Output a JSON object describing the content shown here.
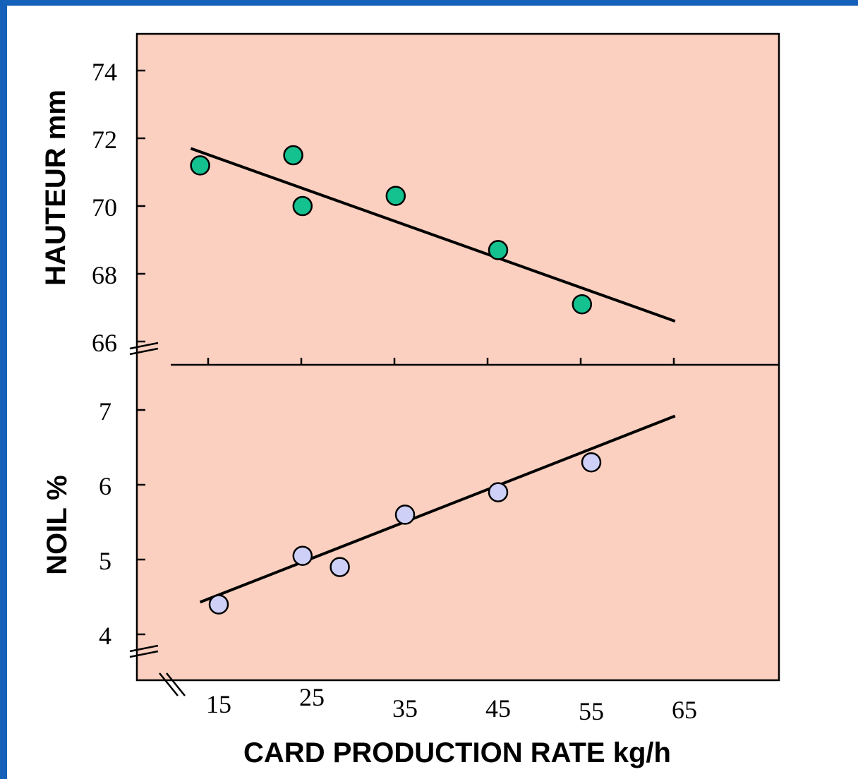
{
  "chart_data": [
    {
      "type": "scatter",
      "title": "",
      "xlabel": "",
      "ylabel": "HAUTEUR mm",
      "xlim": [
        8,
        75
      ],
      "ylim": [
        65,
        75
      ],
      "x_ticks": [
        15,
        25,
        35,
        45,
        55,
        65
      ],
      "y_ticks": [
        66,
        68,
        70,
        72,
        74
      ],
      "y_tick_labels": [
        "66",
        "68",
        "70",
        "72",
        "74"
      ],
      "grid": false,
      "colors": {
        "background": "#fbd0c0",
        "marker": "#14c290"
      },
      "series": [
        {
          "x": [
            13,
            23,
            24,
            34,
            45,
            54
          ],
          "y": [
            71.2,
            71.5,
            70.0,
            70.3,
            68.7,
            67.1
          ]
        }
      ],
      "trendline": {
        "x": [
          12,
          64
        ],
        "y": [
          71.7,
          66.6
        ]
      }
    },
    {
      "type": "scatter",
      "title": "",
      "xlabel": "CARD PRODUCTION RATE kg/h",
      "ylabel": "NOIL %",
      "xlim": [
        8,
        75
      ],
      "ylim": [
        3.6,
        7.5
      ],
      "x_ticks": [
        15,
        25,
        35,
        45,
        55,
        65
      ],
      "x_tick_labels": [
        "15",
        "25",
        "35",
        "45",
        "55",
        "65"
      ],
      "y_ticks": [
        4,
        5,
        6,
        7
      ],
      "y_tick_labels": [
        "4",
        "5",
        "6",
        "7"
      ],
      "grid": false,
      "colors": {
        "background": "#fbd0c0",
        "marker": "#cfd0f8"
      },
      "series": [
        {
          "x": [
            15,
            24,
            28,
            35,
            45,
            55
          ],
          "y": [
            4.4,
            5.05,
            4.9,
            5.6,
            5.9,
            6.3
          ]
        }
      ],
      "trendline": {
        "x": [
          13,
          64
        ],
        "y": [
          4.43,
          6.92
        ]
      }
    }
  ]
}
